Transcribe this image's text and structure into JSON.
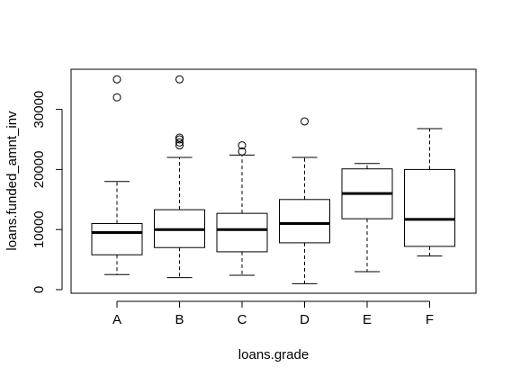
{
  "chart_data": {
    "type": "box",
    "title": "",
    "xlabel": "loans.grade",
    "ylabel": "loans.funded_amnt_inv",
    "ylim": [
      0,
      35000
    ],
    "y_ticks": [
      0,
      10000,
      20000,
      30000
    ],
    "y_tick_labels": [
      "0",
      "10000",
      "20000",
      "30000"
    ],
    "grid": false,
    "categories": [
      "A",
      "B",
      "C",
      "D",
      "E",
      "F"
    ],
    "boxes": [
      {
        "category": "A",
        "whisker_low": 2500,
        "q1": 5800,
        "median": 9500,
        "q3": 11000,
        "whisker_high": 18000,
        "outliers": [
          32000,
          35000
        ]
      },
      {
        "category": "B",
        "whisker_low": 2000,
        "q1": 7000,
        "median": 10000,
        "q3": 13300,
        "whisker_high": 22000,
        "outliers": [
          24000,
          24500,
          25000,
          25300,
          35000
        ]
      },
      {
        "category": "C",
        "whisker_low": 2400,
        "q1": 6300,
        "median": 10000,
        "q3": 12700,
        "whisker_high": 22400,
        "outliers": [
          23000,
          24000
        ]
      },
      {
        "category": "D",
        "whisker_low": 1000,
        "q1": 7800,
        "median": 11000,
        "q3": 15000,
        "whisker_high": 22000,
        "outliers": [
          28000
        ]
      },
      {
        "category": "E",
        "whisker_low": 3000,
        "q1": 11800,
        "median": 16000,
        "q3": 20100,
        "whisker_high": 21000,
        "outliers": []
      },
      {
        "category": "F",
        "whisker_low": 5600,
        "q1": 7200,
        "median": 11700,
        "q3": 20000,
        "whisker_high": 26800,
        "outliers": []
      }
    ],
    "colors": {
      "box_fill": "#ffffff",
      "stroke": "#000000"
    }
  }
}
